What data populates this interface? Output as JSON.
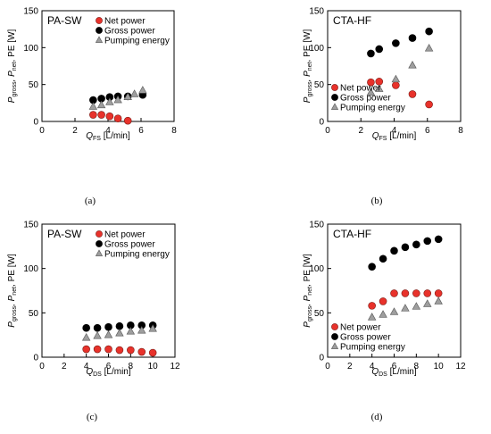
{
  "colors": {
    "net": "#e8322b",
    "gross": "#000000",
    "pumping": "#9e9e9e",
    "frame": "#000000",
    "background": "#ffffff"
  },
  "chart_data": [
    {
      "type": "scatter",
      "panel_label": "PA-SW",
      "caption": "(a)",
      "xlabel_main": "Q",
      "xlabel_sub": "FS",
      "xlabel_unit": " [L/min]",
      "ylabel_parts": [
        "P",
        "gross",
        ", P",
        "net",
        ", PE [W]"
      ],
      "xlim": [
        0,
        8
      ],
      "ylim": [
        0,
        150
      ],
      "xticks": [
        0,
        2,
        4,
        6,
        8
      ],
      "yticks": [
        0,
        50,
        100,
        150
      ],
      "grid": false,
      "legend_position": "top-center",
      "series": [
        {
          "name": "Net power",
          "key": "net",
          "marker": "circle",
          "x": [
            3.1,
            3.6,
            4.1,
            4.6,
            5.2
          ],
          "y": [
            9,
            9,
            7,
            4,
            1
          ]
        },
        {
          "name": "Gross power",
          "key": "gross",
          "marker": "circle",
          "x": [
            3.1,
            3.6,
            4.1,
            4.6,
            5.2,
            6.1
          ],
          "y": [
            29,
            31,
            33,
            34,
            34,
            36
          ]
        },
        {
          "name": "Pumping energy",
          "key": "pumping",
          "marker": "triangle",
          "x": [
            3.1,
            3.6,
            4.1,
            4.6,
            5.2,
            5.6,
            6.1
          ],
          "y": [
            20,
            22,
            26,
            29,
            33,
            37,
            42
          ]
        }
      ]
    },
    {
      "type": "scatter",
      "panel_label": "CTA-HF",
      "caption": "(b)",
      "xlabel_main": "Q",
      "xlabel_sub": "FS",
      "xlabel_unit": " [L/min]",
      "ylabel_parts": [
        "P",
        "gross",
        ", P",
        "net",
        ", PE [W]"
      ],
      "xlim": [
        0,
        8
      ],
      "ylim": [
        0,
        150
      ],
      "xticks": [
        0,
        2,
        4,
        6,
        8
      ],
      "yticks": [
        0,
        50,
        100,
        150
      ],
      "grid": false,
      "legend_position": "bottom-left",
      "series": [
        {
          "name": "Net power",
          "key": "net",
          "marker": "circle",
          "x": [
            2.6,
            3.1,
            4.1,
            5.1,
            6.1
          ],
          "y": [
            53,
            54,
            49,
            37,
            23
          ]
        },
        {
          "name": "Gross power",
          "key": "gross",
          "marker": "circle",
          "x": [
            2.6,
            3.1,
            4.1,
            5.1,
            6.1
          ],
          "y": [
            92,
            98,
            106,
            113,
            122
          ]
        },
        {
          "name": "Pumping   energy",
          "key": "pumping",
          "marker": "triangle",
          "x": [
            2.6,
            3.1,
            4.1,
            5.1,
            6.1
          ],
          "y": [
            39,
            44,
            57,
            76,
            99
          ]
        }
      ]
    },
    {
      "type": "scatter",
      "panel_label": "PA-SW",
      "caption": "(c)",
      "xlabel_main": "Q",
      "xlabel_sub": "DS",
      "xlabel_unit": " [L/min]",
      "ylabel_parts": [
        "P",
        "gross",
        ", P",
        "net",
        ", PE [W]"
      ],
      "xlim": [
        0,
        12
      ],
      "ylim": [
        0,
        150
      ],
      "xticks": [
        0,
        2,
        4,
        6,
        8,
        10,
        12
      ],
      "yticks": [
        0,
        50,
        100,
        150
      ],
      "grid": false,
      "legend_position": "top-center",
      "series": [
        {
          "name": "Net power",
          "key": "net",
          "marker": "circle",
          "x": [
            4,
            5,
            6,
            7,
            8,
            9,
            10
          ],
          "y": [
            9,
            9,
            9,
            8,
            8,
            6,
            5
          ]
        },
        {
          "name": "Gross power",
          "key": "gross",
          "marker": "circle",
          "x": [
            4,
            5,
            6,
            7,
            8,
            9,
            10
          ],
          "y": [
            33,
            33,
            34,
            35,
            36,
            36,
            36
          ]
        },
        {
          "name": "Pumping energy",
          "key": "pumping",
          "marker": "triangle",
          "x": [
            4,
            5,
            6,
            7,
            8,
            9,
            10
          ],
          "y": [
            22,
            24,
            25,
            27,
            29,
            30,
            32
          ]
        }
      ]
    },
    {
      "type": "scatter",
      "panel_label": "CTA-HF",
      "caption": "(d)",
      "xlabel_main": "Q",
      "xlabel_sub": "DS",
      "xlabel_unit": " [L/min]",
      "ylabel_parts": [
        "P",
        "gross",
        ", P",
        "net",
        ", PE [W]"
      ],
      "xlim": [
        0,
        12
      ],
      "ylim": [
        0,
        150
      ],
      "xticks": [
        0,
        2,
        4,
        6,
        8,
        10,
        12
      ],
      "yticks": [
        0,
        50,
        100,
        150
      ],
      "grid": false,
      "legend_position": "bottom-left",
      "series": [
        {
          "name": "Net power",
          "key": "net",
          "marker": "circle",
          "x": [
            4,
            5,
            6,
            7,
            8,
            9,
            10
          ],
          "y": [
            58,
            63,
            72,
            72,
            72,
            72,
            72
          ]
        },
        {
          "name": "Gross power",
          "key": "gross",
          "marker": "circle",
          "x": [
            4,
            5,
            6,
            7,
            8,
            9,
            10
          ],
          "y": [
            102,
            111,
            120,
            124,
            127,
            131,
            133
          ]
        },
        {
          "name": "Pumping energy",
          "key": "pumping",
          "marker": "triangle",
          "x": [
            4,
            5,
            6,
            7,
            8,
            9,
            10
          ],
          "y": [
            45,
            48,
            51,
            55,
            57,
            60,
            63
          ]
        }
      ]
    }
  ]
}
